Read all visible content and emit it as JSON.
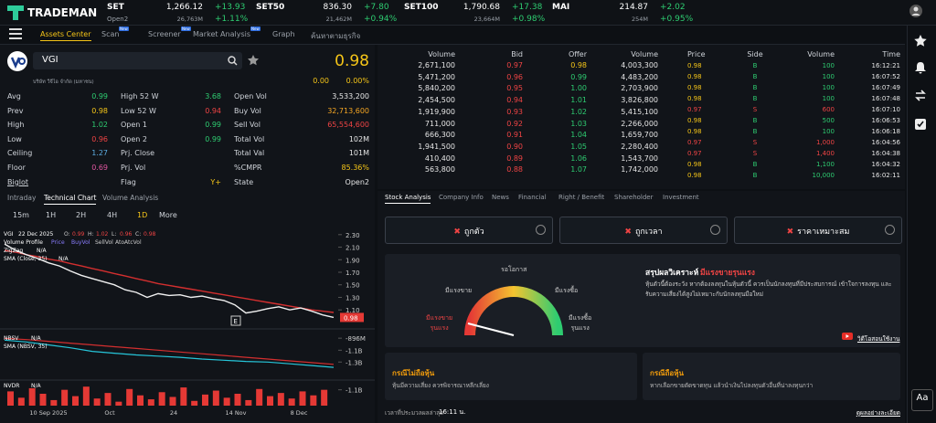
{
  "header": {
    "logo": "TRADEMAN",
    "indices": [
      {
        "name": "SET",
        "value": "1,266.12",
        "change": "+13.93",
        "session": "Open2",
        "volume": "26,763M",
        "percent": "+1.11%"
      },
      {
        "name": "SET50",
        "value": "836.30",
        "change": "+7.80",
        "volume": "21,462M",
        "percent": "+0.94%"
      },
      {
        "name": "SET100",
        "value": "1,790.68",
        "change": "+17.38",
        "volume": "23,664M",
        "percent": "+0.98%"
      },
      {
        "name": "MAI",
        "value": "214.87",
        "change": "+2.02",
        "volume": "254M",
        "percent": "+0.95%"
      }
    ]
  },
  "nav": {
    "tabs": [
      {
        "label": "Assets Center"
      },
      {
        "label": "Scan",
        "badge": "New"
      },
      {
        "label": "Screener",
        "badge": "New"
      },
      {
        "label": "Market Analysis",
        "badge": "New"
      },
      {
        "label": "Graph"
      },
      {
        "label": "ค้นหาตามธุรกิจ"
      }
    ]
  },
  "stock": {
    "symbol": "VGI",
    "name": "บริษัท วีจีไอ จำกัด (มหาชน)",
    "price": "0.98",
    "change": "0.00",
    "percent": "0.00%",
    "stats": [
      [
        {
          "label": "Avg",
          "value": "0.99",
          "color": "#2ecc71"
        },
        {
          "label": "High 52 W",
          "value": "3.68",
          "color": "#2ecc71"
        },
        {
          "label": "Open Vol",
          "value": "3,533,200",
          "color": "#e6e6e6"
        }
      ],
      [
        {
          "label": "Prev",
          "value": "0.98",
          "color": "#f5c518"
        },
        {
          "label": "Low 52 W",
          "value": "0.94",
          "color": "#ef4444"
        },
        {
          "label": "Buy Vol",
          "value": "32,713,600",
          "color": "#f5a623"
        }
      ],
      [
        {
          "label": "High",
          "value": "1.02",
          "color": "#2ecc71"
        },
        {
          "label": "Open 1",
          "value": "0.99",
          "color": "#2ecc71"
        },
        {
          "label": "Sell Vol",
          "value": "65,554,600",
          "color": "#ef4444"
        }
      ],
      [
        {
          "label": "Low",
          "value": "0.96",
          "color": "#ef4444"
        },
        {
          "label": "Open 2",
          "value": "0.99",
          "color": "#2ecc71"
        },
        {
          "label": "Total Vol",
          "value": "102M",
          "color": "#e6e6e6"
        }
      ],
      [
        {
          "label": "Ceiling",
          "value": "1.27",
          "color": "#5dade2"
        },
        {
          "label": "Prj. Close"
        },
        {
          "label": "Total Val",
          "value": "101M",
          "color": "#e6e6e6"
        }
      ],
      [
        {
          "label": "Floor",
          "value": "0.69",
          "color": "#e056a0"
        },
        {
          "label": "Prj. Vol"
        },
        {
          "label": "%CMPR",
          "value": "85.36%",
          "color": "#f5c518"
        }
      ],
      [
        {
          "label": "Biglot"
        },
        {
          "label": "Flag",
          "value": "Y+",
          "color": "#f5c518"
        },
        {
          "label": "State",
          "value": "Open2",
          "color": "#e6e6e6"
        }
      ]
    ]
  },
  "chart_tabs": [
    "Intraday",
    "Technical Chart",
    "Volume Analysis"
  ],
  "timeframes": [
    "15m",
    "1H",
    "2H",
    "4H",
    "1D",
    "More"
  ],
  "price_chart": {
    "symbol": "VGI",
    "date": "22 Dec 2025",
    "ohlc": [
      "O:",
      "0.99",
      "H:",
      "1.02",
      "L:",
      "0.96",
      "C:",
      "0.98"
    ],
    "indicators": [
      "Volume Profile",
      "Price",
      "BuyVol",
      "SellVol",
      "AtoAtcVol"
    ],
    "zigzag": "ZigZag",
    "na": "N/A",
    "sma_label": "SMA (Close, 35)",
    "ylim": [
      0.87,
      2.37
    ],
    "yticks": [
      {
        "value": 2.3,
        "label": "2.30"
      },
      {
        "value": 2.1,
        "label": "2.10"
      },
      {
        "value": 1.9,
        "label": "1.90"
      },
      {
        "value": 1.7,
        "label": "1.70"
      },
      {
        "value": 1.5,
        "label": "1.50"
      },
      {
        "value": 1.3,
        "label": "1.30"
      },
      {
        "value": 1.1,
        "label": "1.10"
      }
    ],
    "last": {
      "value": 0.98,
      "label": "0.98"
    },
    "close": [
      2.15,
      2.05,
      1.98,
      1.92,
      1.85,
      1.8,
      1.72,
      1.65,
      1.6,
      1.55,
      1.5,
      1.42,
      1.38,
      1.3,
      1.36,
      1.33,
      1.34,
      1.3,
      1.32,
      1.28,
      1.25,
      1.18,
      1.05,
      1.08,
      1.12,
      1.15,
      1.1,
      1.13,
      1.08,
      1.02,
      0.98
    ],
    "sma": [
      2.05,
      2.02,
      1.98,
      1.95,
      1.91,
      1.88,
      1.84,
      1.8,
      1.76,
      1.72,
      1.68,
      1.64,
      1.6,
      1.56,
      1.52,
      1.49,
      1.46,
      1.43,
      1.4,
      1.37,
      1.34,
      1.31,
      1.28,
      1.25,
      1.22,
      1.19,
      1.16,
      1.13,
      1.1,
      1.08,
      1.06
    ],
    "event_marker": "E",
    "xlabels": [
      "10 Sep 2025",
      "Oct",
      "24",
      "14 Nov",
      "8 Dec"
    ]
  },
  "nbsv": {
    "label": "NBSV",
    "sma_label": "SMA (NBSV, 35)",
    "ylim": [
      -1590,
      -770
    ],
    "yticks": [
      {
        "value": -896,
        "label": "-896M"
      },
      {
        "value": -1100,
        "label": "-1.1B"
      },
      {
        "value": -1300,
        "label": "-1.3B"
      }
    ],
    "values": [
      -930,
      -960,
      -1010,
      -1060,
      -1120,
      -1150,
      -1180,
      -1200,
      -1220,
      -1250,
      -1270,
      -1290,
      -1300,
      -1330,
      -1360,
      -1390
    ],
    "sma": [
      -900,
      -920,
      -950,
      -980,
      -1010,
      -1040,
      -1070,
      -1100,
      -1130,
      -1160,
      -1190,
      -1220,
      -1250,
      -1280,
      -1310,
      -1340
    ]
  },
  "nvdr": {
    "label": "NVDR",
    "ylim": [
      -1300,
      -1000
    ],
    "yticks": [
      {
        "value": -1100,
        "label": "-1.1B"
      }
    ],
    "values": [
      -1120,
      -1200,
      -1080,
      -1150,
      -1230,
      -1100,
      -1180,
      -1060,
      -1210,
      -1140,
      -1250,
      -1090,
      -1170,
      -1220,
      -1130,
      -1190,
      -1070,
      -1240,
      -1160,
      -1110,
      -1200,
      -1150,
      -1230,
      -1090,
      -1180,
      -1140,
      -1210,
      -1120,
      -1170,
      -1100
    ]
  },
  "orderbook": {
    "headers": [
      "Volume",
      "Bid",
      "Offer",
      "Volume"
    ],
    "rows": [
      [
        "2,671,100",
        "0.97",
        "0.98",
        "4,003,300"
      ],
      [
        "5,471,200",
        "0.96",
        "0.99",
        "4,483,200"
      ],
      [
        "5,840,200",
        "0.95",
        "1.00",
        "2,703,900"
      ],
      [
        "2,454,500",
        "0.94",
        "1.01",
        "3,826,800"
      ],
      [
        "1,919,900",
        "0.93",
        "1.02",
        "5,415,100"
      ],
      [
        "711,000",
        "0.92",
        "1.03",
        "2,266,000"
      ],
      [
        "666,300",
        "0.91",
        "1.04",
        "1,659,700"
      ],
      [
        "1,941,500",
        "0.90",
        "1.05",
        "2,280,400"
      ],
      [
        "410,400",
        "0.89",
        "1.06",
        "1,543,700"
      ],
      [
        "563,800",
        "0.88",
        "1.07",
        "1,742,000"
      ]
    ]
  },
  "ticker": {
    "headers": [
      "Price",
      "Side",
      "Volume",
      "Time"
    ],
    "rows": [
      [
        "0.98",
        "B",
        "100",
        "16:12:21"
      ],
      [
        "0.98",
        "B",
        "100",
        "16:07:52"
      ],
      [
        "0.98",
        "B",
        "100",
        "16:07:49"
      ],
      [
        "0.98",
        "B",
        "100",
        "16:07:48"
      ],
      [
        "0.97",
        "S",
        "600",
        "16:07:10"
      ],
      [
        "0.98",
        "B",
        "500",
        "16:06:53"
      ],
      [
        "0.98",
        "B",
        "100",
        "16:06:18"
      ],
      [
        "0.97",
        "S",
        "1,000",
        "16:04:56"
      ],
      [
        "0.97",
        "S",
        "1,400",
        "16:04:38"
      ],
      [
        "0.98",
        "B",
        "1,100",
        "16:04:32"
      ],
      [
        "0.98",
        "B",
        "10,000",
        "16:02:11"
      ]
    ]
  },
  "analysis_tabs": [
    "Stock Analysis",
    "Company Info",
    "News",
    "Financial",
    "Right / Benefit",
    "Shareholder",
    "Investment"
  ],
  "checks": [
    "ถูกตัว",
    "ถูกเวลา",
    "ราคาเหมาะสม"
  ],
  "gauge": {
    "wait": "รอโอกาส",
    "sell": "มีแรงขาย",
    "buy": "มีแรงซื้อ",
    "strong_sell": "มีแรงขาย\nรุนแรง",
    "strong_buy": "มีแรงซื้อ\nรุนแรง"
  },
  "summary": {
    "title": "สรุปผลวิเคราะห์",
    "verdict": "มีแรงขายรุนแรง",
    "text": "หุ้นตัวนี้ต้องระวัง หากต้องลงทุนในหุ้นตัวนี้ ควรเป็นนักลงทุนที่มีประสบการณ์ เข้าใจการลงทุน และรับความเสี่ยงได้สูงไม่เหมาะกับนักลงทุนมือใหม่",
    "video": "วิดีโอสอนใช้งาน"
  },
  "cases": [
    {
      "title": "กรณีไม่ถือหุ้น",
      "text": "หุ้นมีความเสี่ยง ควรพิจารณาหลีกเลี่ยง"
    },
    {
      "title": "กรณีถือหุ้น",
      "text": "หากเลือกขายตัดขาดทุน แล้วนำเงินไปลงทุนตัวอื่นที่น่าลงทุนกว่า"
    }
  ],
  "footer": {
    "label": "เวลาที่ประมวลผลล่าสุด",
    "time": "16:11 น.",
    "link": "ดูผลอย่างละเอียด"
  },
  "sidebar": {
    "font_button": "Aa"
  }
}
